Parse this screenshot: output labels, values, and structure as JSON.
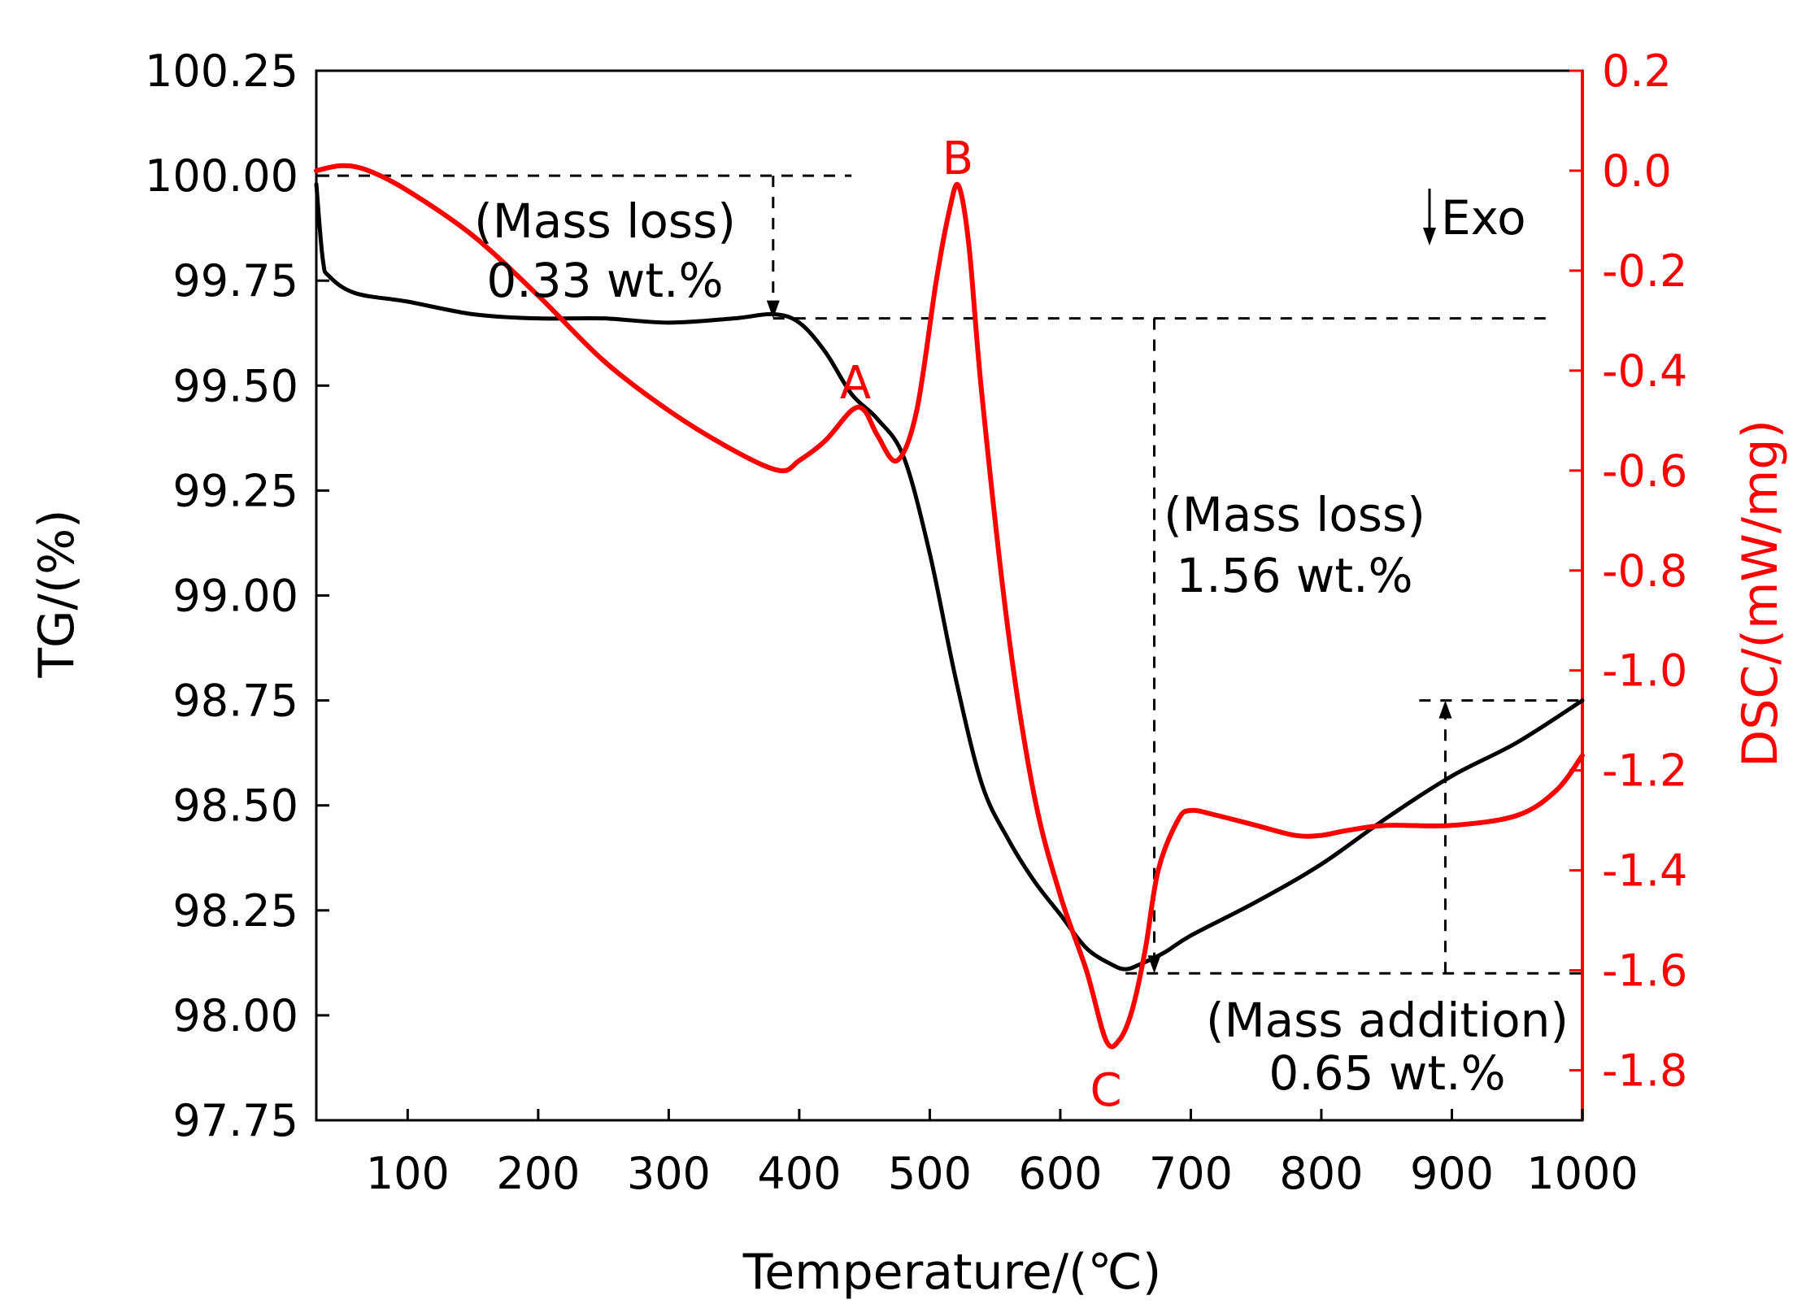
{
  "chart_data": {
    "type": "line",
    "xlabel": "Temperature/(℃)",
    "ylabel_left": "TG/(%)",
    "ylabel_right": "DSC/(mW/mg)",
    "xlim": [
      30,
      1000
    ],
    "ylim_left": [
      97.75,
      100.25
    ],
    "ylim_right": [
      -1.9,
      0.2
    ],
    "x_ticks": [
      100,
      200,
      300,
      400,
      500,
      600,
      700,
      800,
      900,
      1000
    ],
    "x_tick_labels": [
      "100",
      "200",
      "300",
      "400",
      "500",
      "600",
      "700",
      "800",
      "900",
      "1000"
    ],
    "y_left_ticks": [
      97.75,
      98.0,
      98.25,
      98.5,
      98.75,
      99.0,
      99.25,
      99.5,
      99.75,
      100.0,
      100.25
    ],
    "y_left_tick_labels": [
      "97.75",
      "98.00",
      "98.25",
      "98.50",
      "98.75",
      "99.00",
      "99.25",
      "99.50",
      "99.75",
      "100.00",
      "100.25"
    ],
    "y_right_ticks": [
      -1.8,
      -1.6,
      -1.4,
      -1.2,
      -1.0,
      -0.8,
      -0.6,
      -0.4,
      -0.2,
      0.0,
      0.2
    ],
    "y_right_tick_labels": [
      "-1.8",
      "-1.6",
      "-1.4",
      "-1.2",
      "-1.0",
      "-0.8",
      "-0.6",
      "-0.4",
      "-0.2",
      "0.0",
      "0.2"
    ],
    "colors": {
      "tg": "#000000",
      "dsc": "#ff0000",
      "axis": "#000000",
      "right_axis": "#ff0000"
    },
    "series": [
      {
        "name": "TG",
        "axis": "left",
        "x": [
          30,
          35,
          40,
          60,
          100,
          150,
          200,
          250,
          300,
          350,
          380,
          400,
          420,
          440,
          460,
          480,
          500,
          520,
          540,
          560,
          580,
          600,
          620,
          640,
          650,
          660,
          680,
          700,
          750,
          800,
          850,
          900,
          950,
          1000
        ],
        "y": [
          99.98,
          99.8,
          99.76,
          99.72,
          99.7,
          99.67,
          99.66,
          99.66,
          99.65,
          99.66,
          99.67,
          99.65,
          99.58,
          99.48,
          99.42,
          99.33,
          99.1,
          98.8,
          98.55,
          98.42,
          98.32,
          98.24,
          98.16,
          98.12,
          98.11,
          98.12,
          98.15,
          98.19,
          98.27,
          98.36,
          98.47,
          98.57,
          98.65,
          98.75
        ]
      },
      {
        "name": "DSC",
        "axis": "right",
        "x": [
          30,
          50,
          70,
          100,
          150,
          200,
          250,
          300,
          350,
          385,
          400,
          420,
          440,
          450,
          460,
          475,
          490,
          505,
          515,
          522,
          530,
          540,
          560,
          580,
          600,
          620,
          635,
          645,
          655,
          665,
          675,
          690,
          700,
          720,
          750,
          780,
          800,
          820,
          850,
          900,
          950,
          980,
          1000
        ],
        "y": [
          0.0,
          0.01,
          0.0,
          -0.04,
          -0.13,
          -0.25,
          -0.38,
          -0.48,
          -0.56,
          -0.6,
          -0.58,
          -0.54,
          -0.48,
          -0.48,
          -0.53,
          -0.58,
          -0.48,
          -0.22,
          -0.08,
          -0.03,
          -0.15,
          -0.45,
          -0.92,
          -1.25,
          -1.45,
          -1.6,
          -1.74,
          -1.74,
          -1.68,
          -1.56,
          -1.4,
          -1.3,
          -1.28,
          -1.29,
          -1.31,
          -1.33,
          -1.33,
          -1.32,
          -1.31,
          -1.31,
          -1.29,
          -1.24,
          -1.17
        ]
      }
    ],
    "peak_labels": [
      {
        "label": "A",
        "x": 447,
        "dsc": -0.48
      },
      {
        "label": "B",
        "x": 522,
        "dsc": -0.03
      },
      {
        "label": "C",
        "x": 637,
        "dsc": -1.75
      }
    ],
    "annotations": [
      {
        "line1": "(Mass loss)",
        "line2": "0.33 wt.%"
      },
      {
        "line1": "(Mass loss)",
        "line2": "1.56 wt.%"
      },
      {
        "line1": "(Mass addition)",
        "line2": "0.65 wt.%"
      },
      {
        "line1": "Exo",
        "line2": ""
      }
    ],
    "reference_levels": {
      "tg_start": 100.0,
      "tg_plateau": 99.66,
      "tg_min": 98.1,
      "tg_end": 98.75
    }
  }
}
